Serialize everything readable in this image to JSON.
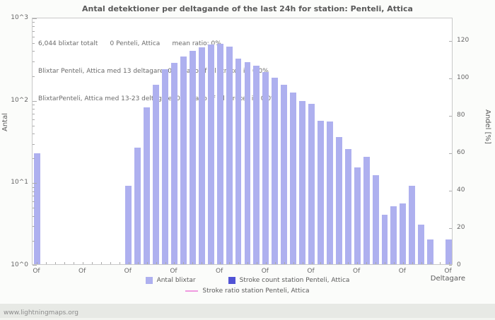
{
  "meta": {
    "watermark": "www.lightningmaps.org"
  },
  "chart_data": {
    "type": "bar",
    "title": "Antal detektioner per deltagande of the last 24h for station: Penteli, Attica",
    "xlabel": "Deltagare",
    "ylabel_left": "Antal",
    "ylabel_right": "Andel [%]",
    "y_left_scale": "log10",
    "y_left_range": [
      1,
      1000
    ],
    "y_left_ticks": [
      "10^3",
      "10^2",
      "10^1",
      "10^0"
    ],
    "y_right_ticks": [
      120,
      100,
      80,
      60,
      40,
      20,
      0
    ],
    "y_right_max": 132,
    "grid": false,
    "legend_position": "bottom",
    "x_slot_count": 46,
    "x_tick_labels": [
      "Of",
      "Of",
      "Of",
      "Of",
      "Of",
      "Of",
      "Of",
      "Of",
      "Of",
      "Of"
    ],
    "x_tick_slots": [
      0,
      5,
      10,
      15,
      20,
      25,
      30,
      35,
      40,
      45
    ],
    "annotations": [
      "6,044 blixtar totalt      0 Penteli, Attica      mean ratio: 0%",
      "Blixtar Penteli, Attica med 13 deltagare: 0      ratio of all strokes is: 0.0%",
      "BlixtarPenteli, Attica med 13-23 deltagare: 0      ratio of all strokes is: 0.0%"
    ],
    "series": [
      {
        "name": "Antal blixtar",
        "type": "bar",
        "color": "#aeb0ef",
        "points": [
          [
            0,
            22
          ],
          [
            10,
            9
          ],
          [
            11,
            26
          ],
          [
            12,
            80
          ],
          [
            13,
            150
          ],
          [
            14,
            230
          ],
          [
            15,
            280
          ],
          [
            16,
            330
          ],
          [
            17,
            390
          ],
          [
            18,
            430
          ],
          [
            19,
            460
          ],
          [
            20,
            470
          ],
          [
            21,
            440
          ],
          [
            22,
            310
          ],
          [
            23,
            285
          ],
          [
            24,
            255
          ],
          [
            25,
            215
          ],
          [
            26,
            185
          ],
          [
            27,
            150
          ],
          [
            28,
            120
          ],
          [
            29,
            95
          ],
          [
            30,
            88
          ],
          [
            31,
            55
          ],
          [
            32,
            54
          ],
          [
            33,
            35
          ],
          [
            34,
            25
          ],
          [
            35,
            15
          ],
          [
            36,
            20
          ],
          [
            37,
            12
          ],
          [
            38,
            4
          ],
          [
            39,
            5
          ],
          [
            40,
            5.5
          ],
          [
            41,
            9
          ],
          [
            42,
            3
          ],
          [
            43,
            2
          ],
          [
            45,
            2
          ]
        ]
      },
      {
        "name": "Stroke count station Penteli, Attica",
        "type": "bar",
        "color": "#5153d5",
        "points": []
      },
      {
        "name": "Stroke ratio station Penteli, Attica",
        "type": "line",
        "color": "#f09ae0",
        "points": []
      }
    ]
  }
}
